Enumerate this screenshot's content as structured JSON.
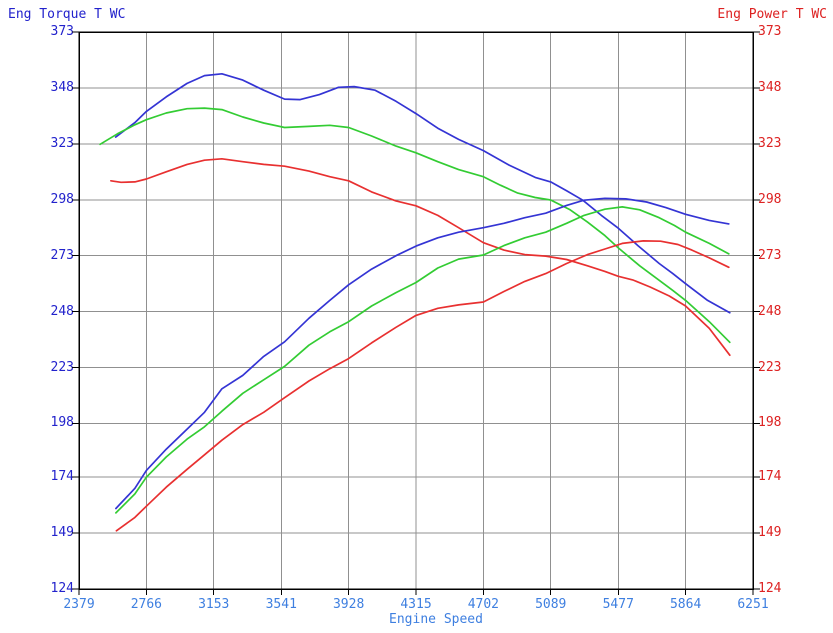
{
  "left_axis": {
    "title": "Eng Torque T WC",
    "color": "#2222CC",
    "ticks": [
      "373",
      "348",
      "323",
      "298",
      "273",
      "248",
      "223",
      "198",
      "174",
      "149",
      "124"
    ]
  },
  "right_axis": {
    "title": "Eng Power T WC",
    "color": "#DD2222",
    "ticks": [
      "373",
      "348",
      "323",
      "298",
      "273",
      "248",
      "223",
      "198",
      "174",
      "149",
      "124"
    ]
  },
  "x_axis": {
    "title": "Engine Speed",
    "color": "#3E7FE0",
    "ticks": [
      "2379",
      "2766",
      "3153",
      "3541",
      "3928",
      "4315",
      "4702",
      "5089",
      "5477",
      "5864",
      "6251"
    ]
  },
  "colors": {
    "grid": "#909090",
    "border": "#000000",
    "background": "#FFFFFF"
  },
  "chart_data": {
    "type": "line",
    "title": "",
    "x_label": "Engine Speed",
    "y_left_label": "Eng Torque T WC",
    "y_right_label": "Eng Power T WC",
    "x_range": [
      2379,
      6251
    ],
    "y_range": [
      124,
      373
    ],
    "x_ticks": [
      2379,
      2766,
      3153,
      3541,
      3928,
      4315,
      4702,
      5089,
      5477,
      5864,
      6251
    ],
    "y_ticks": [
      373,
      348,
      323,
      298,
      273,
      248,
      223,
      198,
      174,
      149,
      124
    ],
    "grid": true,
    "legend": "none",
    "series": [
      {
        "name": "torque-blue",
        "axis": "left",
        "color": "#3434D4",
        "points": [
          [
            2590,
            326
          ],
          [
            2700,
            332.5
          ],
          [
            2766,
            337.5
          ],
          [
            2880,
            344
          ],
          [
            3000,
            350
          ],
          [
            3100,
            353.5
          ],
          [
            3200,
            354.3
          ],
          [
            3320,
            351.5
          ],
          [
            3440,
            347
          ],
          [
            3560,
            343
          ],
          [
            3650,
            342.8
          ],
          [
            3760,
            345
          ],
          [
            3870,
            348.3
          ],
          [
            3960,
            348.6
          ],
          [
            4080,
            347
          ],
          [
            4200,
            342
          ],
          [
            4315,
            336.5
          ],
          [
            4440,
            330
          ],
          [
            4560,
            325
          ],
          [
            4702,
            320
          ],
          [
            4850,
            313.5
          ],
          [
            5000,
            308
          ],
          [
            5089,
            306
          ],
          [
            5180,
            302
          ],
          [
            5273,
            297.8
          ],
          [
            5380,
            291
          ],
          [
            5477,
            285.3
          ],
          [
            5590,
            277.5
          ],
          [
            5712,
            269.5
          ],
          [
            5790,
            265
          ],
          [
            5864,
            260.5
          ],
          [
            5990,
            253
          ],
          [
            6118,
            247.5
          ]
        ]
      },
      {
        "name": "torque-green",
        "axis": "left",
        "color": "#33CC33",
        "points": [
          [
            2500,
            322.8
          ],
          [
            2600,
            327.5
          ],
          [
            2700,
            331.5
          ],
          [
            2766,
            333.8
          ],
          [
            2880,
            336.8
          ],
          [
            3000,
            338.7
          ],
          [
            3100,
            339
          ],
          [
            3200,
            338.3
          ],
          [
            3320,
            335
          ],
          [
            3440,
            332.3
          ],
          [
            3560,
            330.3
          ],
          [
            3700,
            330.8
          ],
          [
            3820,
            331.3
          ],
          [
            3928,
            330.3
          ],
          [
            4060,
            326.5
          ],
          [
            4200,
            322
          ],
          [
            4315,
            319
          ],
          [
            4440,
            315
          ],
          [
            4560,
            311.5
          ],
          [
            4702,
            308.3
          ],
          [
            4800,
            304.5
          ],
          [
            4900,
            301
          ],
          [
            5000,
            299
          ],
          [
            5089,
            297.9
          ],
          [
            5200,
            293.5
          ],
          [
            5300,
            288
          ],
          [
            5400,
            282
          ],
          [
            5477,
            276.5
          ],
          [
            5600,
            268.5
          ],
          [
            5712,
            262
          ],
          [
            5790,
            257.5
          ],
          [
            5864,
            253
          ],
          [
            6000,
            243.5
          ],
          [
            6118,
            234.3
          ]
        ]
      },
      {
        "name": "torque-red",
        "axis": "left",
        "color": "#E83030",
        "points": [
          [
            2562,
            306.5
          ],
          [
            2620,
            305.8
          ],
          [
            2700,
            306
          ],
          [
            2766,
            307.3
          ],
          [
            2880,
            310.5
          ],
          [
            3000,
            313.8
          ],
          [
            3100,
            315.7
          ],
          [
            3200,
            316.3
          ],
          [
            3320,
            315
          ],
          [
            3440,
            313.8
          ],
          [
            3560,
            313
          ],
          [
            3700,
            310.8
          ],
          [
            3820,
            308.3
          ],
          [
            3928,
            306.5
          ],
          [
            4060,
            301.5
          ],
          [
            4200,
            297.5
          ],
          [
            4315,
            295.3
          ],
          [
            4440,
            291
          ],
          [
            4560,
            285.5
          ],
          [
            4702,
            278.8
          ],
          [
            4820,
            275.5
          ],
          [
            4940,
            273.5
          ],
          [
            5060,
            272.8
          ],
          [
            5180,
            271.3
          ],
          [
            5300,
            268.5
          ],
          [
            5400,
            266
          ],
          [
            5477,
            263.8
          ],
          [
            5560,
            262.2
          ],
          [
            5660,
            259
          ],
          [
            5770,
            255
          ],
          [
            5864,
            250.5
          ],
          [
            6000,
            240.5
          ],
          [
            6118,
            228.5
          ]
        ]
      },
      {
        "name": "power-blue",
        "axis": "right",
        "color": "#3434D4",
        "points": [
          [
            2591,
            160
          ],
          [
            2700,
            169
          ],
          [
            2766,
            177
          ],
          [
            2880,
            186.5
          ],
          [
            3000,
            195.5
          ],
          [
            3100,
            203
          ],
          [
            3200,
            213.5
          ],
          [
            3320,
            219.5
          ],
          [
            3440,
            228
          ],
          [
            3560,
            234.5
          ],
          [
            3700,
            245
          ],
          [
            3820,
            253
          ],
          [
            3928,
            260
          ],
          [
            4060,
            267
          ],
          [
            4200,
            273
          ],
          [
            4315,
            277.3
          ],
          [
            4440,
            281
          ],
          [
            4560,
            283.5
          ],
          [
            4702,
            285.5
          ],
          [
            4820,
            287.5
          ],
          [
            4940,
            290
          ],
          [
            5060,
            292
          ],
          [
            5180,
            295.5
          ],
          [
            5280,
            297.8
          ],
          [
            5400,
            298.6
          ],
          [
            5520,
            298.4
          ],
          [
            5640,
            297
          ],
          [
            5750,
            294.5
          ],
          [
            5864,
            291.5
          ],
          [
            6000,
            288.8
          ],
          [
            6112,
            287.2
          ]
        ]
      },
      {
        "name": "power-green",
        "axis": "right",
        "color": "#33CC33",
        "points": [
          [
            2591,
            158
          ],
          [
            2700,
            166.5
          ],
          [
            2766,
            174
          ],
          [
            2880,
            183
          ],
          [
            3000,
            191
          ],
          [
            3100,
            196.5
          ],
          [
            3200,
            203.5
          ],
          [
            3320,
            211.5
          ],
          [
            3440,
            217.5
          ],
          [
            3560,
            223.5
          ],
          [
            3700,
            233
          ],
          [
            3820,
            239
          ],
          [
            3928,
            243.5
          ],
          [
            4060,
            250.5
          ],
          [
            4200,
            256.5
          ],
          [
            4315,
            261
          ],
          [
            4440,
            267.5
          ],
          [
            4560,
            271.5
          ],
          [
            4702,
            273.3
          ],
          [
            4820,
            277.5
          ],
          [
            4940,
            281
          ],
          [
            5060,
            283.5
          ],
          [
            5180,
            287.5
          ],
          [
            5280,
            291
          ],
          [
            5400,
            293.8
          ],
          [
            5500,
            294.8
          ],
          [
            5600,
            293.5
          ],
          [
            5712,
            290
          ],
          [
            5800,
            286.5
          ],
          [
            5864,
            283.5
          ],
          [
            6000,
            278.5
          ],
          [
            6112,
            273.8
          ]
        ]
      },
      {
        "name": "power-red",
        "axis": "right",
        "color": "#E83030",
        "points": [
          [
            2594,
            150
          ],
          [
            2700,
            156
          ],
          [
            2766,
            161
          ],
          [
            2880,
            169.5
          ],
          [
            3000,
            177.5
          ],
          [
            3100,
            184
          ],
          [
            3200,
            190.5
          ],
          [
            3320,
            197.5
          ],
          [
            3440,
            203
          ],
          [
            3560,
            209.5
          ],
          [
            3700,
            217
          ],
          [
            3820,
            222.5
          ],
          [
            3928,
            227
          ],
          [
            4060,
            234
          ],
          [
            4200,
            241
          ],
          [
            4315,
            246.3
          ],
          [
            4440,
            249.5
          ],
          [
            4560,
            251
          ],
          [
            4702,
            252.3
          ],
          [
            4820,
            257
          ],
          [
            4940,
            261.5
          ],
          [
            5060,
            265
          ],
          [
            5180,
            269.5
          ],
          [
            5300,
            273.5
          ],
          [
            5400,
            276
          ],
          [
            5500,
            278.5
          ],
          [
            5620,
            279.6
          ],
          [
            5720,
            279.5
          ],
          [
            5820,
            278
          ],
          [
            5900,
            275.5
          ],
          [
            6000,
            272
          ],
          [
            6112,
            267.8
          ]
        ]
      }
    ]
  }
}
